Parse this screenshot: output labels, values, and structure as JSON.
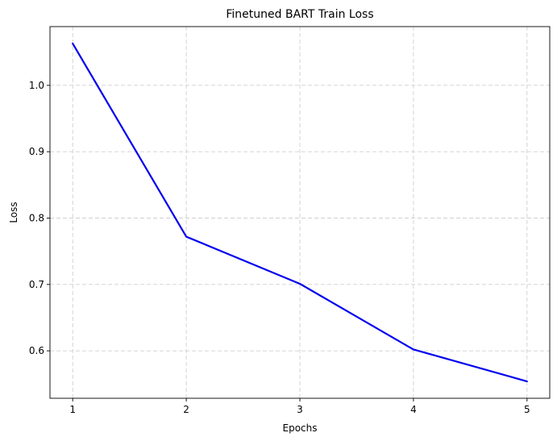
{
  "chart_data": {
    "type": "line",
    "title": "Finetuned BART Train Loss",
    "xlabel": "Epochs",
    "ylabel": "Loss",
    "x": [
      1,
      2,
      3,
      4,
      5
    ],
    "series": [
      {
        "values": [
          1.063,
          0.772,
          0.701,
          0.602,
          0.554
        ],
        "color": "#0000ee"
      }
    ],
    "xticks": [
      "1",
      "2",
      "3",
      "4",
      "5"
    ],
    "yticks": [
      "0.6",
      "0.7",
      "0.8",
      "0.9",
      "1.0"
    ],
    "ytick_values": [
      0.6,
      0.7,
      0.8,
      0.9,
      1.0
    ],
    "xlim": [
      0.8,
      5.2
    ],
    "ylim": [
      0.5285,
      1.0885
    ],
    "grid": true
  }
}
